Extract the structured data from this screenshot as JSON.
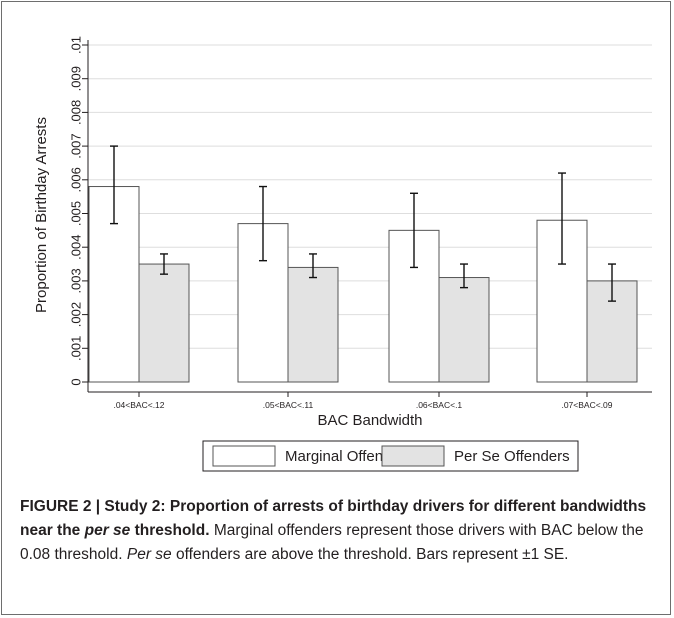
{
  "chart_data": {
    "type": "bar",
    "xlabel": "BAC Bandwidth",
    "ylabel": "Proportion of Birthday Arrests",
    "ylim": [
      0,
      0.01
    ],
    "yticks": [
      0,
      0.001,
      0.002,
      0.003,
      0.004,
      0.005,
      0.006,
      0.007,
      0.008,
      0.009,
      0.01
    ],
    "ytick_labels": [
      "0",
      ".001",
      ".002",
      ".003",
      ".004",
      ".005",
      ".006",
      ".007",
      ".008",
      ".009",
      ".01"
    ],
    "categories": [
      ".04<BAC<.12",
      ".05<BAC<.11",
      ".06<BAC<.1",
      ".07<BAC<.09"
    ],
    "series": [
      {
        "name": "Marginal Offenders",
        "color": "#ffffff",
        "values": [
          0.0058,
          0.0047,
          0.0045,
          0.0048
        ],
        "error_low": [
          0.0047,
          0.0036,
          0.0034,
          0.0035
        ],
        "error_high": [
          0.007,
          0.0058,
          0.0056,
          0.0062
        ]
      },
      {
        "name": "Per Se Offenders",
        "color": "#e3e3e3",
        "values": [
          0.0035,
          0.0034,
          0.0031,
          0.003
        ],
        "error_low": [
          0.0032,
          0.0031,
          0.0028,
          0.0024
        ],
        "error_high": [
          0.0038,
          0.0038,
          0.0035,
          0.0035
        ]
      }
    ],
    "grid": true,
    "legend": "bottom"
  },
  "caption": {
    "label": "FIGURE 2 | Study 2: Proportion of arrests of birthday drivers for different bandwidths near the ",
    "label_italic": "per se",
    "label_end": " threshold.",
    "text1": " Marginal offenders represent those drivers with BAC below the 0.08 threshold. ",
    "text_italic": "Per se",
    "text2": " offenders are above the threshold. Bars represent ±1 SE."
  }
}
